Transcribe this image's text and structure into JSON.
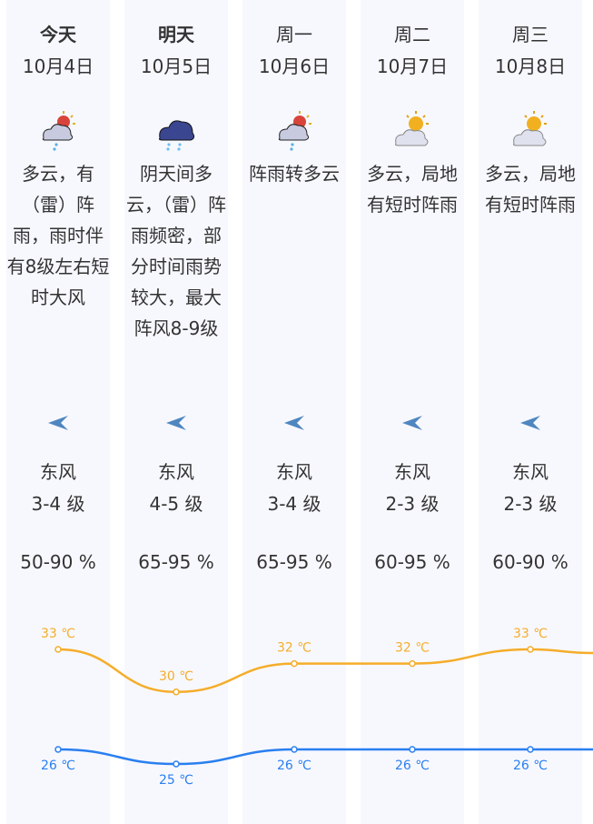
{
  "days": [
    {
      "day": "今天",
      "date": "10月4日",
      "icon": "partly-cloudy-thunder-rain-icon",
      "desc": "多云，有（雷）阵雨，雨时伴有8级左右短时大风",
      "wind_dir": "东风",
      "wind_level": "3-4 级",
      "humidity": "50-90 %",
      "high": "33 ℃",
      "low": "26 ℃"
    },
    {
      "day": "明天",
      "date": "10月5日",
      "icon": "overcast-rain-icon",
      "desc": "阴天间多云，（雷）阵雨频密，部分时间雨势较大，最大阵风8-9级",
      "wind_dir": "东风",
      "wind_level": "4-5 级",
      "humidity": "65-95 %",
      "high": "30 ℃",
      "low": "25 ℃"
    },
    {
      "day": "周一",
      "date": "10月6日",
      "icon": "partly-cloudy-rain-icon",
      "desc": "阵雨转多云",
      "wind_dir": "东风",
      "wind_level": "3-4 级",
      "humidity": "65-95 %",
      "high": "32 ℃",
      "low": "26 ℃"
    },
    {
      "day": "周二",
      "date": "10月7日",
      "icon": "partly-cloudy-icon",
      "desc": "多云，局地有短时阵雨",
      "wind_dir": "东风",
      "wind_level": "2-3 级",
      "humidity": "60-95 %",
      "high": "32 ℃",
      "low": "26 ℃"
    },
    {
      "day": "周三",
      "date": "10月8日",
      "icon": "partly-cloudy-icon",
      "desc": "多云，局地有短时阵雨",
      "wind_dir": "东风",
      "wind_level": "2-3 级",
      "humidity": "60-90 %",
      "high": "33 ℃",
      "low": "26 ℃"
    }
  ],
  "chart_data": {
    "type": "line",
    "categories": [
      "10月4日",
      "10月5日",
      "10月6日",
      "10月7日",
      "10月8日"
    ],
    "series": [
      {
        "values": [
          33,
          30,
          32,
          32,
          33
        ],
        "color": "#f5ad2a"
      },
      {
        "values": [
          26,
          25,
          26,
          26,
          26
        ],
        "color": "#2a7ff0"
      }
    ],
    "unit": "℃"
  }
}
